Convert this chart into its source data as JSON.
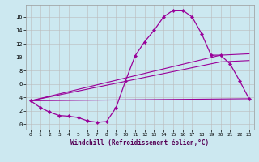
{
  "xlabel": "Windchill (Refroidissement éolien,°C)",
  "bg_color": "#cce8f0",
  "line_color": "#990099",
  "grid_color": "#bbbbbb",
  "xlim": [
    -0.5,
    23.5
  ],
  "ylim": [
    -0.8,
    17.8
  ],
  "xticks": [
    0,
    1,
    2,
    3,
    4,
    5,
    6,
    7,
    8,
    9,
    10,
    11,
    12,
    13,
    14,
    15,
    16,
    17,
    18,
    19,
    20,
    21,
    22,
    23
  ],
  "yticks": [
    0,
    2,
    4,
    6,
    8,
    10,
    12,
    14,
    16
  ],
  "line1_x": [
    0,
    1,
    2,
    3,
    4,
    5,
    6,
    7,
    8,
    9,
    10,
    11,
    12,
    13,
    14,
    15,
    16,
    17,
    18,
    19,
    20,
    21,
    22,
    23
  ],
  "line1_y": [
    3.5,
    2.5,
    1.8,
    1.3,
    1.2,
    1.0,
    0.5,
    0.3,
    0.4,
    2.5,
    6.5,
    10.2,
    12.3,
    14.0,
    16.0,
    17.0,
    17.0,
    16.0,
    13.5,
    10.3,
    10.3,
    9.0,
    6.5,
    3.8
  ],
  "line2_x": [
    0,
    23
  ],
  "line2_y": [
    3.5,
    3.8
  ],
  "line3_x": [
    0,
    20,
    23
  ],
  "line3_y": [
    3.5,
    10.3,
    10.5
  ],
  "line4_x": [
    0,
    20,
    23
  ],
  "line4_y": [
    3.5,
    9.3,
    9.5
  ]
}
